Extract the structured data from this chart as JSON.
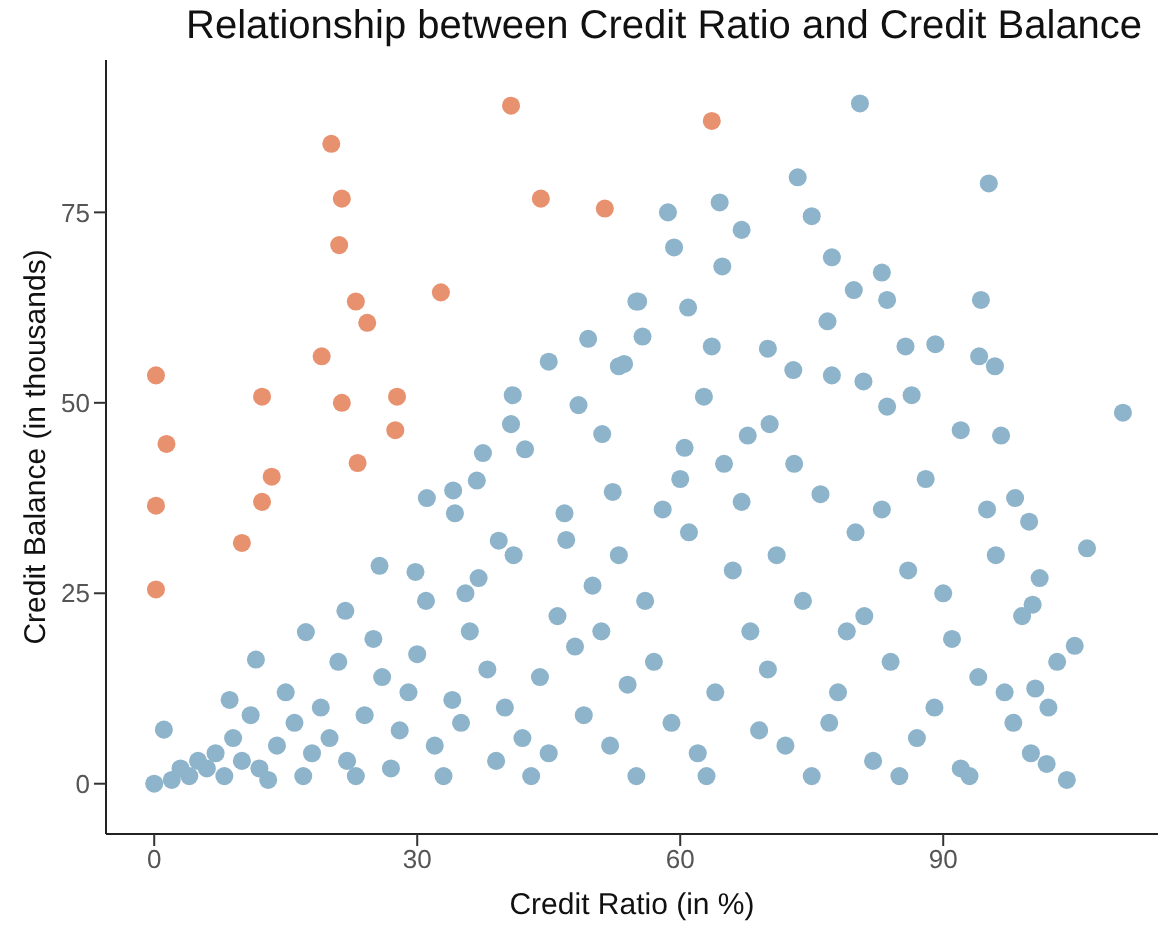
{
  "chart_data": {
    "type": "scatter",
    "title": "Relationship between Credit Ratio and Credit Balance",
    "xlabel": "Credit Ratio (in %)",
    "ylabel": "Credit Balance (in thousands)",
    "xlim": [
      -5.5,
      114.5
    ],
    "ylim": [
      -6.6,
      95
    ],
    "xticks": [
      0,
      30,
      60,
      90
    ],
    "yticks": [
      0,
      25,
      50,
      75
    ],
    "grid": false,
    "legend": false,
    "marker": "circle",
    "series": [
      {
        "color": "#8db4cb",
        "x": [
          80.5,
          73.4,
          95.2,
          58.6,
          64.5,
          67,
          59.3,
          64.8,
          75,
          77.3,
          83,
          79.8,
          83.6,
          94.3,
          55.2,
          60.9,
          76.8,
          55.7,
          63.6,
          70,
          72.9,
          85.7,
          89.1,
          94.1,
          95.9,
          53.6,
          77.3,
          80.9,
          62.7,
          86.4,
          110.5,
          83.6,
          70.2,
          67.7,
          60.5,
          96.6,
          92,
          106.4,
          105,
          104.1,
          101.8,
          100.2,
          99.8,
          98.2,
          100.5,
          55,
          49.5,
          45,
          40.9,
          40.7,
          37.5,
          31.1,
          34.1,
          36.8,
          25.7,
          29.8,
          21.8,
          17.3,
          11.6,
          8.6,
          1.1,
          35.5,
          42.3,
          51.1,
          53,
          48.4,
          34.3,
          39.3,
          46.8,
          52.3,
          0,
          2,
          4,
          6,
          8,
          10,
          3,
          7,
          9,
          5,
          12,
          14,
          16,
          18,
          11,
          15,
          19,
          17,
          13,
          20,
          22,
          24,
          26,
          28,
          21,
          25,
          29,
          23,
          27,
          30,
          32,
          34,
          36,
          38,
          31,
          35,
          39,
          33,
          37,
          40,
          42,
          44,
          46,
          48,
          41,
          45,
          49,
          43,
          47,
          50,
          52,
          54,
          56,
          58,
          51,
          55,
          59,
          53,
          57,
          60,
          62,
          64,
          66,
          68,
          61,
          65,
          69,
          63,
          67,
          70,
          72,
          74,
          76,
          78,
          71,
          75,
          79,
          73,
          77,
          80,
          82,
          84,
          86,
          88,
          81,
          85,
          89,
          83,
          87,
          90,
          92,
          94,
          96,
          98,
          91,
          95,
          99,
          93,
          97,
          100,
          102,
          103,
          101
        ],
        "values": [
          89.3,
          79.6,
          78.8,
          75,
          76.3,
          72.7,
          70.4,
          67.9,
          74.5,
          69.1,
          67.1,
          64.8,
          63.5,
          63.5,
          63.3,
          62.5,
          60.7,
          58.7,
          57.4,
          57.1,
          54.3,
          57.4,
          57.7,
          56.1,
          54.8,
          55.1,
          53.6,
          52.8,
          50.8,
          51,
          48.7,
          49.5,
          47.2,
          45.7,
          44.1,
          45.7,
          46.4,
          30.9,
          18.1,
          0.5,
          2.6,
          23.5,
          34.4,
          37.5,
          12.5,
          63.3,
          58.4,
          55.4,
          51,
          47.2,
          43.4,
          37.5,
          38.5,
          39.8,
          28.6,
          27.8,
          22.7,
          19.9,
          16.3,
          11,
          7.1,
          25,
          43.9,
          45.9,
          54.8,
          49.7,
          35.5,
          31.9,
          35.5,
          38.3,
          0,
          0.5,
          1,
          2,
          1,
          3,
          2,
          4,
          6,
          3,
          2,
          5,
          8,
          4,
          9,
          12,
          10,
          1,
          0.5,
          6,
          3,
          9,
          14,
          7,
          16,
          19,
          12,
          1,
          2,
          17,
          5,
          11,
          20,
          15,
          24,
          8,
          3,
          1,
          27,
          10,
          6,
          14,
          22,
          18,
          30,
          4,
          9,
          1,
          32,
          26,
          5,
          13,
          24,
          36,
          20,
          1,
          8,
          30,
          16,
          40,
          4,
          12,
          28,
          20,
          33,
          42,
          7,
          1,
          37,
          15,
          5,
          24,
          38,
          12,
          30,
          1,
          20,
          42,
          8,
          33,
          3,
          16,
          28,
          40,
          22,
          1,
          10,
          36,
          6,
          25,
          2,
          14,
          30,
          8,
          19,
          36,
          22,
          1,
          12,
          4,
          10,
          16,
          27
        ]
      },
      {
        "color": "#e8916f",
        "x": [
          0.2,
          0.2,
          0.2,
          1.4,
          10,
          12.3,
          12.3,
          13.4,
          20.2,
          21.4,
          21.1,
          23,
          24.3,
          19.1,
          21.4,
          27.7,
          23.2,
          27.5,
          32.7,
          40.7,
          44.1,
          51.4,
          63.6
        ],
        "values": [
          53.6,
          36.5,
          25.5,
          44.6,
          31.6,
          50.8,
          37,
          40.3,
          84,
          76.8,
          70.7,
          63.3,
          60.5,
          56.1,
          50,
          50.8,
          42.1,
          46.4,
          64.5,
          89,
          76.8,
          75.5,
          87
        ]
      }
    ]
  }
}
